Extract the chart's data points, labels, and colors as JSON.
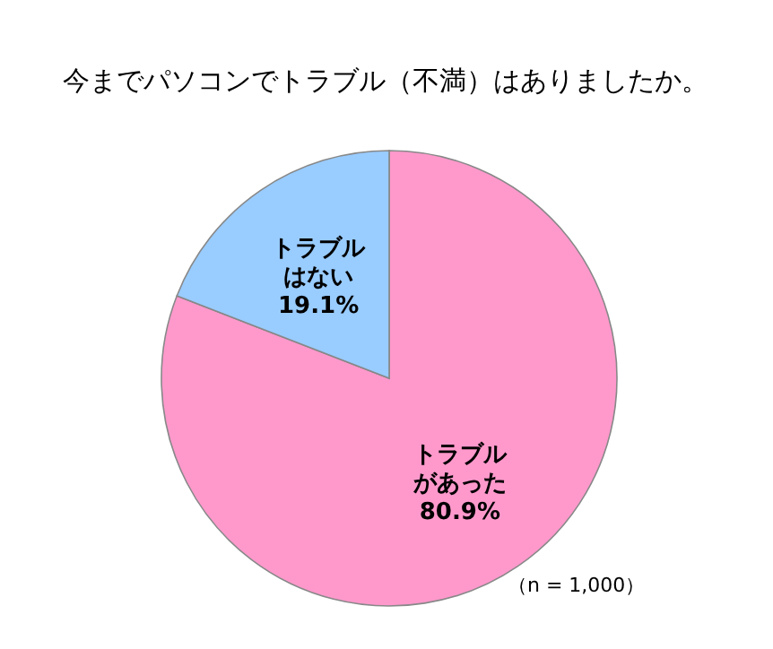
{
  "chart_data": {
    "type": "pie",
    "title": "今までパソコンでトラブル（不満）はありましたか。",
    "categories": [
      "トラブルがあった",
      "トラブルはない"
    ],
    "values": [
      80.9,
      19.1
    ],
    "value_labels": [
      "80.9%",
      "19.1%"
    ],
    "colors": [
      "#ff99cc",
      "#99ccff"
    ],
    "legend": false,
    "annotations": [
      "（n = 1,000）"
    ]
  }
}
